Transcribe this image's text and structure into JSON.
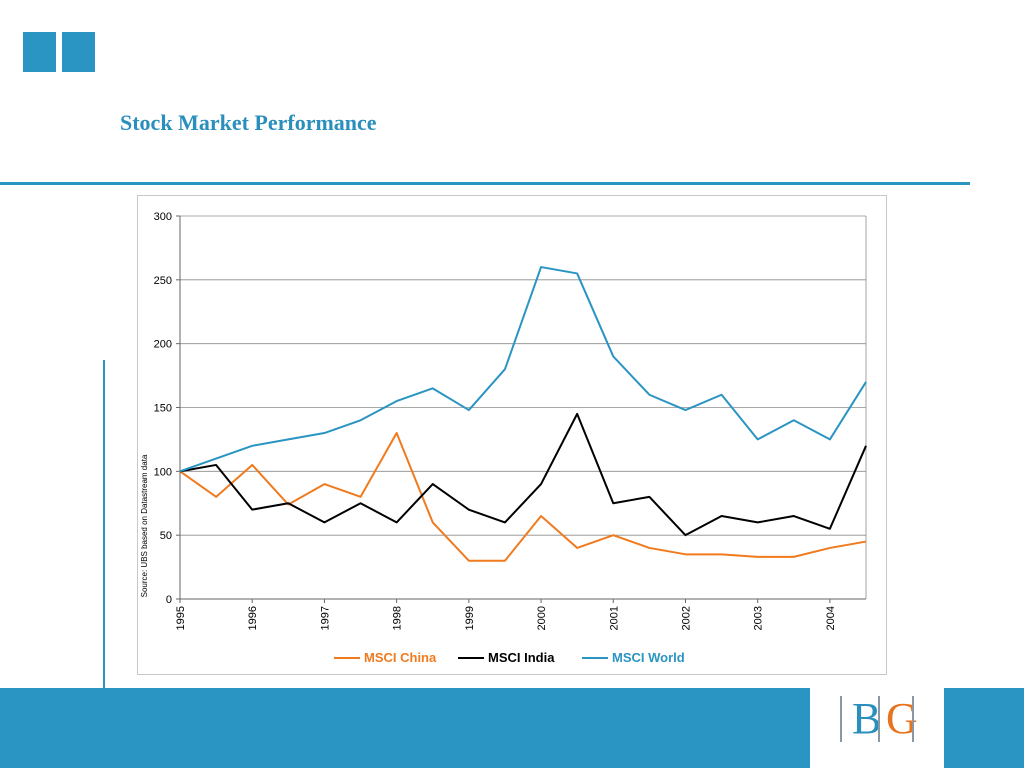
{
  "slide": {
    "title": "Stock Market Performance",
    "accent_color": "#2a94c2"
  },
  "logo": {
    "letter_b": "B",
    "letter_g": "G"
  },
  "chart_data": {
    "type": "line",
    "title": "",
    "xlabel": "",
    "ylabel": "",
    "source_note": "Source: UBS based on Datastream data",
    "ylim": [
      0,
      300
    ],
    "yticks": [
      "0",
      "50",
      "100",
      "150",
      "200",
      "250",
      "300"
    ],
    "xlim": [
      1995,
      2004.5
    ],
    "xticks": [
      "1995",
      "1996",
      "1997",
      "1998",
      "1999",
      "2000",
      "2001",
      "2002",
      "2003",
      "2004"
    ],
    "grid": true,
    "legend_position": "bottom",
    "x": [
      1995,
      1995.5,
      1996,
      1996.5,
      1997,
      1997.5,
      1998,
      1998.5,
      1999,
      1999.5,
      2000,
      2000.5,
      2001,
      2001.5,
      2002,
      2002.5,
      2003,
      2003.5,
      2004,
      2004.5
    ],
    "series": [
      {
        "name": "MSCI China",
        "color": "#f07a1e",
        "values": [
          100,
          80,
          105,
          74,
          90,
          80,
          130,
          60,
          30,
          30,
          65,
          40,
          50,
          40,
          35,
          35,
          33,
          33,
          40,
          45
        ]
      },
      {
        "name": "MSCI India",
        "color": "#000000",
        "values": [
          100,
          105,
          70,
          75,
          60,
          75,
          60,
          90,
          70,
          60,
          90,
          145,
          75,
          80,
          50,
          65,
          60,
          65,
          55,
          120
        ]
      },
      {
        "name": "MSCI World",
        "color": "#2a94c2",
        "values": [
          100,
          110,
          120,
          125,
          130,
          140,
          155,
          165,
          148,
          180,
          260,
          255,
          190,
          160,
          148,
          160,
          125,
          140,
          125,
          170
        ]
      }
    ]
  }
}
